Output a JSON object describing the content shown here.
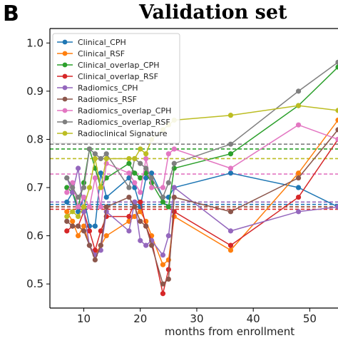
{
  "panel_label": "B",
  "chart_data": {
    "type": "line",
    "title": "Validation set",
    "xlabel": "months from enrollment",
    "ylabel": "",
    "xlim": [
      4,
      55
    ],
    "ylim": [
      0.45,
      1.03
    ],
    "xticks": [
      10,
      20,
      30,
      40,
      50
    ],
    "yticks": [
      0.5,
      0.6,
      0.7,
      0.8,
      0.9,
      1.0
    ],
    "grid": false,
    "legend_position": "top-left",
    "series": [
      {
        "name": "Clinical_CPH",
        "color": "#1f77b4",
        "baseline": 0.665,
        "x": [
          7,
          8,
          9,
          10,
          11,
          12,
          13,
          14,
          18,
          19,
          20,
          21,
          22,
          24,
          25,
          26,
          36,
          48,
          55
        ],
        "y": [
          0.67,
          0.69,
          0.65,
          0.68,
          0.62,
          0.62,
          0.73,
          0.68,
          0.72,
          0.7,
          0.66,
          0.72,
          0.73,
          0.68,
          0.68,
          0.7,
          0.73,
          0.7,
          0.66
        ]
      },
      {
        "name": "Clinical_RSF",
        "color": "#ff7f0e",
        "baseline": 0.66,
        "x": [
          7,
          8,
          9,
          10,
          11,
          12,
          13,
          14,
          18,
          19,
          20,
          21,
          22,
          24,
          25,
          26,
          36,
          48,
          55
        ],
        "y": [
          0.65,
          0.63,
          0.6,
          0.62,
          0.58,
          0.56,
          0.58,
          0.6,
          0.63,
          0.64,
          0.65,
          0.63,
          0.6,
          0.54,
          0.55,
          0.64,
          0.57,
          0.73,
          0.84
        ]
      },
      {
        "name": "Clinical_overlap_CPH",
        "color": "#2ca02c",
        "baseline": 0.78,
        "x": [
          7,
          8,
          9,
          10,
          11,
          12,
          13,
          14,
          18,
          19,
          20,
          21,
          22,
          24,
          25,
          26,
          36,
          48,
          55
        ],
        "y": [
          0.7,
          0.69,
          0.66,
          0.71,
          0.78,
          0.74,
          0.7,
          0.72,
          0.75,
          0.73,
          0.72,
          0.73,
          0.71,
          0.67,
          0.66,
          0.74,
          0.77,
          0.87,
          0.95
        ]
      },
      {
        "name": "Clinical_overlap_RSF",
        "color": "#d62728",
        "baseline": 0.655,
        "x": [
          7,
          8,
          9,
          10,
          11,
          12,
          13,
          14,
          18,
          19,
          20,
          21,
          22,
          24,
          25,
          26,
          36,
          48,
          55
        ],
        "y": [
          0.61,
          0.62,
          0.62,
          0.65,
          0.61,
          0.57,
          0.61,
          0.64,
          0.64,
          0.67,
          0.67,
          0.62,
          0.59,
          0.48,
          0.53,
          0.65,
          0.58,
          0.68,
          0.8
        ]
      },
      {
        "name": "Radiomics_CPH",
        "color": "#9467bd",
        "baseline": 0.67,
        "x": [
          7,
          8,
          9,
          10,
          11,
          12,
          13,
          14,
          18,
          19,
          20,
          21,
          22,
          24,
          25,
          26,
          36,
          48,
          55
        ],
        "y": [
          0.72,
          0.69,
          0.74,
          0.65,
          0.58,
          0.56,
          0.57,
          0.65,
          0.61,
          0.67,
          0.59,
          0.58,
          0.59,
          0.56,
          0.6,
          0.7,
          0.61,
          0.65,
          0.66
        ]
      },
      {
        "name": "Radiomics_RSF",
        "color": "#8c564b",
        "baseline": 0.66,
        "x": [
          7,
          8,
          9,
          10,
          11,
          12,
          13,
          14,
          18,
          19,
          20,
          21,
          22,
          24,
          25,
          26,
          36,
          48,
          55
        ],
        "y": [
          0.63,
          0.62,
          0.62,
          0.61,
          0.58,
          0.55,
          0.58,
          0.66,
          0.68,
          0.66,
          0.63,
          0.62,
          0.58,
          0.5,
          0.51,
          0.68,
          0.65,
          0.72,
          0.82
        ]
      },
      {
        "name": "Radiomics_overlap_CPH",
        "color": "#e377c2",
        "baseline": 0.728,
        "x": [
          7,
          8,
          9,
          10,
          11,
          12,
          13,
          14,
          18,
          19,
          20,
          21,
          22,
          24,
          25,
          26,
          36,
          48,
          55
        ],
        "y": [
          0.69,
          0.71,
          0.66,
          0.68,
          0.66,
          0.72,
          0.66,
          0.75,
          0.73,
          0.71,
          0.69,
          0.76,
          0.7,
          0.7,
          0.77,
          0.78,
          0.74,
          0.83,
          0.8
        ]
      },
      {
        "name": "Radiomics_overlap_RSF",
        "color": "#7f7f7f",
        "baseline": 0.79,
        "x": [
          7,
          8,
          9,
          10,
          11,
          12,
          13,
          14,
          18,
          19,
          20,
          21,
          22,
          24,
          25,
          26,
          36,
          48,
          55
        ],
        "y": [
          0.72,
          0.7,
          0.68,
          0.7,
          0.78,
          0.77,
          0.76,
          0.77,
          0.7,
          0.76,
          0.75,
          0.74,
          0.72,
          0.68,
          0.71,
          0.75,
          0.79,
          0.9,
          0.96
        ]
      },
      {
        "name": "Radioclinical Signature",
        "color": "#bcbd22",
        "baseline": 0.76,
        "x": [
          7,
          8,
          9,
          10,
          11,
          12,
          13,
          14,
          18,
          19,
          20,
          21,
          22,
          24,
          25,
          26,
          36,
          48,
          55
        ],
        "y": [
          0.64,
          0.65,
          0.64,
          0.66,
          0.7,
          0.76,
          0.7,
          0.76,
          0.76,
          0.76,
          0.78,
          0.77,
          0.8,
          0.82,
          0.83,
          0.84,
          0.85,
          0.87,
          0.86
        ]
      }
    ]
  }
}
